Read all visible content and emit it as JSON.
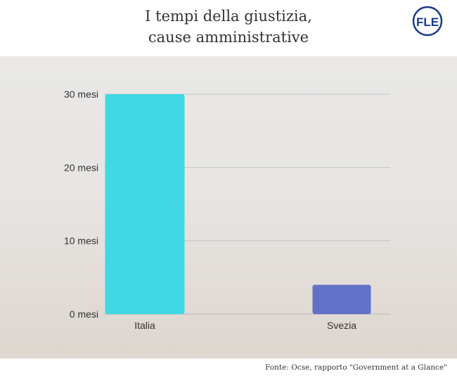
{
  "header": {
    "title_line1": "I tempi della giustizia,",
    "title_line2": "cause amministrative"
  },
  "logo": {
    "text": "FLE",
    "icon": "fle-logo-icon",
    "color": "#1a3a8c"
  },
  "chart_data": {
    "type": "bar",
    "categories": [
      "Italia",
      "Svezia"
    ],
    "values": [
      30,
      4
    ],
    "colors": [
      "#3fd8e4",
      "#6272c8"
    ],
    "yticks": [
      0,
      10,
      20,
      30
    ],
    "ytick_labels": [
      "0 mesi",
      "10 mesi",
      "20 mesi",
      "30 mesi"
    ],
    "ylim": [
      0,
      30
    ],
    "grid": true,
    "legend": "none"
  },
  "footer": {
    "source": "Fonte: Ocse,  rapporto \"Government at a Glance\""
  }
}
